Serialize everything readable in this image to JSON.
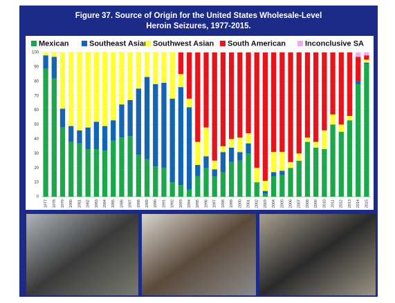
{
  "chart_data": {
    "type": "stacked_bar",
    "title": [
      "Figure 37. Source of Origin for the United States Wholesale-Level",
      "Heroin Seizures, 1977-2015."
    ],
    "categories": [
      "1977",
      "1978",
      "1979",
      "1980",
      "1981",
      "1982",
      "1983",
      "1984",
      "1985",
      "1986",
      "1987",
      "1988",
      "1989",
      "1990",
      "1991",
      "1992",
      "1993",
      "1994",
      "1995",
      "1996",
      "1997",
      "1998",
      "1999",
      "2000",
      "2001",
      "2002",
      "2003",
      "2004",
      "2005",
      "2006",
      "2007",
      "2008",
      "2009",
      "2010",
      "2011",
      "2012",
      "2013",
      "2014",
      "2015"
    ],
    "series": [
      {
        "name": "Mexican",
        "color": "#1aa84a",
        "values": [
          89,
          82,
          48,
          38,
          37,
          33,
          33,
          32,
          39,
          41,
          42,
          29,
          26,
          21,
          20,
          10,
          8,
          5,
          14,
          20,
          14,
          17,
          24,
          25,
          30,
          10,
          2,
          14,
          15,
          20,
          25,
          38,
          34,
          33,
          50,
          45,
          53,
          78,
          92
        ]
      },
      {
        "name": "Southeast Asian",
        "color": "#1464b4",
        "values": [
          9,
          15,
          13,
          11,
          9,
          15,
          19,
          17,
          14,
          23,
          25,
          46,
          57,
          57,
          59,
          58,
          68,
          57,
          8,
          8,
          5,
          14,
          10,
          6,
          7,
          0,
          2,
          3,
          3,
          0,
          0,
          0,
          0,
          0,
          0,
          0,
          0,
          2,
          1
        ]
      },
      {
        "name": "Southwest Asian",
        "color": "#ffff33",
        "values": [
          2,
          3,
          39,
          51,
          54,
          52,
          48,
          51,
          47,
          36,
          33,
          25,
          17,
          22,
          21,
          32,
          9,
          6,
          16,
          20,
          6,
          4,
          6,
          10,
          7,
          10,
          7,
          14,
          13,
          4,
          5,
          3,
          4,
          13,
          7,
          5,
          3,
          0,
          2
        ]
      },
      {
        "name": "South American",
        "color": "#e8141c",
        "values": [
          0,
          0,
          0,
          0,
          0,
          0,
          0,
          0,
          0,
          0,
          0,
          0,
          0,
          0,
          0,
          0,
          15,
          32,
          62,
          52,
          75,
          65,
          60,
          59,
          56,
          80,
          89,
          69,
          69,
          76,
          70,
          59,
          62,
          54,
          43,
          50,
          44,
          17,
          3
        ]
      },
      {
        "name": "Inconclusive SA",
        "color": "#f0a8f0",
        "values": [
          0,
          0,
          0,
          0,
          0,
          0,
          0,
          0,
          0,
          0,
          0,
          0,
          0,
          0,
          0,
          0,
          0,
          0,
          0,
          0,
          0,
          0,
          0,
          0,
          0,
          0,
          0,
          0,
          0,
          0,
          0,
          0,
          0,
          0,
          0,
          0,
          0,
          3,
          2
        ]
      }
    ],
    "ylim": [
      0,
      100
    ],
    "yticks": [
      0,
      10,
      20,
      30,
      40,
      50,
      60,
      70,
      80,
      90,
      100
    ],
    "grid": true
  }
}
